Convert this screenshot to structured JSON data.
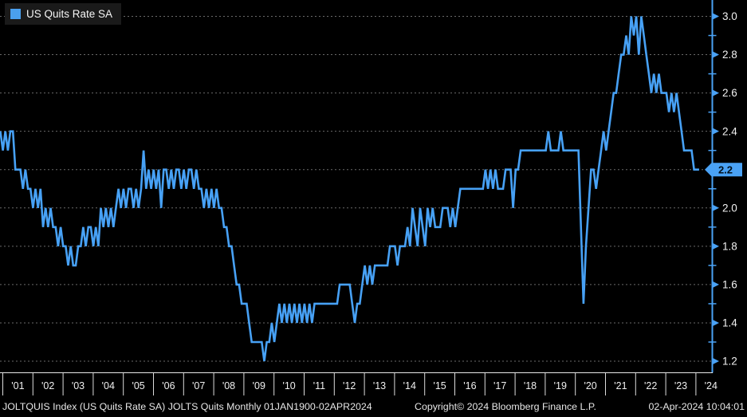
{
  "legend": {
    "label": "US Quits Rate SA",
    "swatch_color": "#4AA0EE"
  },
  "footer": {
    "left": "JOLTQUIS Index (US Quits Rate SA) JOLTS Quits  Monthly 01JAN1900-02APR2024",
    "copyright": "Copyright© 2024 Bloomberg Finance L.P.",
    "datetime": "02-Apr-2024 10:04:01"
  },
  "chart_data": {
    "type": "line",
    "title": "US Quits Rate SA",
    "x_tick_labels": [
      "'01",
      "'02",
      "'03",
      "'04",
      "'05",
      "'06",
      "'07",
      "'08",
      "'09",
      "'10",
      "'11",
      "'12",
      "'13",
      "'14",
      "'15",
      "'16",
      "'17",
      "'18",
      "'19",
      "'20",
      "'21",
      "'22",
      "'23",
      "'24"
    ],
    "y_tick_labels": [
      "3.0",
      "2.8",
      "2.6",
      "2.4",
      "2.2",
      "2.0",
      "1.8",
      "1.6",
      "1.4",
      "1.2"
    ],
    "y_minor_ticks": [
      2.9,
      2.7,
      2.5,
      2.3,
      2.1,
      1.9,
      1.7,
      1.5,
      1.3
    ],
    "ylim": [
      1.1,
      3.05
    ],
    "grid": "horizontal-dashed",
    "legend_position": "top-left",
    "line_color": "#47A1F5",
    "axis_color": "#4AA2F5",
    "grid_color": "#6a6a6a",
    "last_value_label": "2.2",
    "series": [
      {
        "name": "US Quits Rate SA",
        "frequency": "monthly",
        "start": "2000-12",
        "end": "2024-02",
        "values": [
          2.4,
          2.3,
          2.4,
          2.3,
          2.4,
          2.4,
          2.2,
          2.2,
          2.2,
          2.1,
          2.2,
          2.1,
          2.1,
          2.0,
          2.1,
          2.0,
          2.1,
          1.9,
          2.0,
          1.9,
          2.0,
          1.9,
          1.9,
          1.8,
          1.9,
          1.8,
          1.8,
          1.7,
          1.8,
          1.7,
          1.7,
          1.8,
          1.8,
          1.9,
          1.8,
          1.9,
          1.9,
          1.8,
          1.9,
          1.8,
          2.0,
          1.9,
          2.0,
          1.9,
          2.0,
          1.9,
          2.0,
          2.1,
          2.0,
          2.1,
          2.0,
          2.1,
          2.1,
          2.0,
          2.1,
          2.0,
          2.1,
          2.3,
          2.1,
          2.2,
          2.1,
          2.2,
          2.1,
          2.2,
          2.0,
          2.2,
          2.2,
          2.1,
          2.2,
          2.1,
          2.2,
          2.2,
          2.1,
          2.2,
          2.1,
          2.2,
          2.2,
          2.1,
          2.2,
          2.1,
          2.1,
          2.0,
          2.1,
          2.0,
          2.1,
          2.0,
          2.1,
          2.0,
          2.0,
          1.9,
          1.9,
          1.8,
          1.8,
          1.7,
          1.6,
          1.6,
          1.5,
          1.5,
          1.5,
          1.4,
          1.3,
          1.3,
          1.3,
          1.3,
          1.3,
          1.2,
          1.3,
          1.3,
          1.4,
          1.3,
          1.4,
          1.5,
          1.4,
          1.5,
          1.4,
          1.5,
          1.4,
          1.5,
          1.4,
          1.5,
          1.4,
          1.5,
          1.4,
          1.5,
          1.4,
          1.5,
          1.5,
          1.5,
          1.5,
          1.5,
          1.5,
          1.5,
          1.5,
          1.5,
          1.5,
          1.6,
          1.6,
          1.6,
          1.6,
          1.6,
          1.5,
          1.4,
          1.5,
          1.5,
          1.6,
          1.7,
          1.6,
          1.7,
          1.6,
          1.7,
          1.7,
          1.7,
          1.7,
          1.7,
          1.7,
          1.8,
          1.8,
          1.8,
          1.7,
          1.8,
          1.8,
          1.8,
          1.9,
          1.8,
          2.0,
          1.9,
          1.8,
          2.0,
          1.9,
          1.8,
          2.0,
          1.9,
          2.0,
          1.9,
          1.9,
          1.9,
          2.0,
          2.0,
          2.0,
          1.9,
          2.0,
          1.9,
          2.0,
          2.1,
          2.1,
          2.1,
          2.1,
          2.1,
          2.1,
          2.1,
          2.1,
          2.1,
          2.1,
          2.2,
          2.1,
          2.2,
          2.1,
          2.2,
          2.1,
          2.1,
          2.1,
          2.2,
          2.2,
          2.2,
          2.0,
          2.2,
          2.2,
          2.3,
          2.3,
          2.3,
          2.3,
          2.3,
          2.3,
          2.3,
          2.3,
          2.3,
          2.3,
          2.3,
          2.4,
          2.3,
          2.3,
          2.3,
          2.3,
          2.4,
          2.3,
          2.3,
          2.3,
          2.3,
          2.3,
          2.3,
          2.3,
          1.9,
          1.5,
          1.8,
          2.0,
          2.2,
          2.2,
          2.1,
          2.2,
          2.3,
          2.4,
          2.3,
          2.4,
          2.5,
          2.6,
          2.6,
          2.7,
          2.8,
          2.8,
          2.9,
          2.8,
          3.0,
          2.9,
          3.0,
          2.8,
          3.0,
          2.9,
          2.8,
          2.7,
          2.6,
          2.7,
          2.6,
          2.7,
          2.6,
          2.6,
          2.6,
          2.5,
          2.6,
          2.5,
          2.6,
          2.5,
          2.4,
          2.3,
          2.3,
          2.3,
          2.3,
          2.2,
          2.2,
          2.2
        ]
      }
    ]
  }
}
